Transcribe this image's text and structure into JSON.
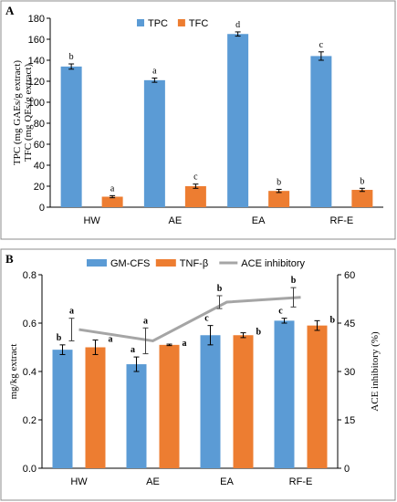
{
  "colors": {
    "blue": "#5b9bd5",
    "orange": "#ed7d31",
    "gray": "#a5a5a5"
  },
  "chart_data": [
    {
      "panel": "A",
      "type": "bar",
      "categories": [
        "HW",
        "AE",
        "EA",
        "RF-E"
      ],
      "ylabel": [
        "TPC (mg GAEs/g extract)",
        "TFC (mg QEs/g extract)"
      ],
      "ylim": [
        0,
        180
      ],
      "yticks": [
        0,
        20,
        40,
        60,
        80,
        100,
        120,
        140,
        160,
        180
      ],
      "legend_position": "top",
      "series": [
        {
          "name": "TPC",
          "color": "#5b9bd5",
          "values": [
            134,
            121,
            165,
            144
          ],
          "errors": [
            2.5,
            2,
            2,
            4
          ],
          "letters": [
            "b",
            "a",
            "d",
            "c"
          ]
        },
        {
          "name": "TFC",
          "color": "#ed7d31",
          "values": [
            10,
            20,
            15.5,
            16.5
          ],
          "errors": [
            1,
            2,
            1.5,
            1.5
          ],
          "letters": [
            "a",
            "c",
            "b",
            "b"
          ]
        }
      ]
    },
    {
      "panel": "B",
      "type": "bar",
      "categories": [
        "HW",
        "AE",
        "EA",
        "RF-E"
      ],
      "ylabel": "mg/kg extract",
      "ylim": [
        0,
        0.8
      ],
      "yticks": [
        0,
        0.2,
        0.4,
        0.6,
        0.8
      ],
      "y2label": "ACE inhibitory (%)",
      "y2lim": [
        0,
        60
      ],
      "y2ticks": [
        0,
        15,
        30,
        45,
        60
      ],
      "legend_position": "top",
      "series": [
        {
          "name": "GM-CFS",
          "color": "#5b9bd5",
          "axis": "left",
          "values": [
            0.49,
            0.43,
            0.55,
            0.61
          ],
          "errors": [
            0.02,
            0.03,
            0.04,
            0.01
          ],
          "letters": [
            "b",
            "a",
            "c",
            "c"
          ]
        },
        {
          "name": "TNF-β",
          "color": "#ed7d31",
          "axis": "left",
          "values": [
            0.5,
            0.51,
            0.55,
            0.59
          ],
          "errors": [
            0.03,
            0.003,
            0.01,
            0.02
          ],
          "letters": [
            "a",
            "a",
            "b",
            "b"
          ]
        },
        {
          "name": "ACE inhibitory",
          "color": "#a5a5a5",
          "type": "line",
          "axis": "right",
          "values": [
            43,
            39.5,
            51.5,
            53
          ],
          "errors": [
            3.5,
            4,
            2,
            3
          ],
          "letters": [
            "a",
            "a",
            "b",
            "b"
          ]
        }
      ]
    }
  ]
}
